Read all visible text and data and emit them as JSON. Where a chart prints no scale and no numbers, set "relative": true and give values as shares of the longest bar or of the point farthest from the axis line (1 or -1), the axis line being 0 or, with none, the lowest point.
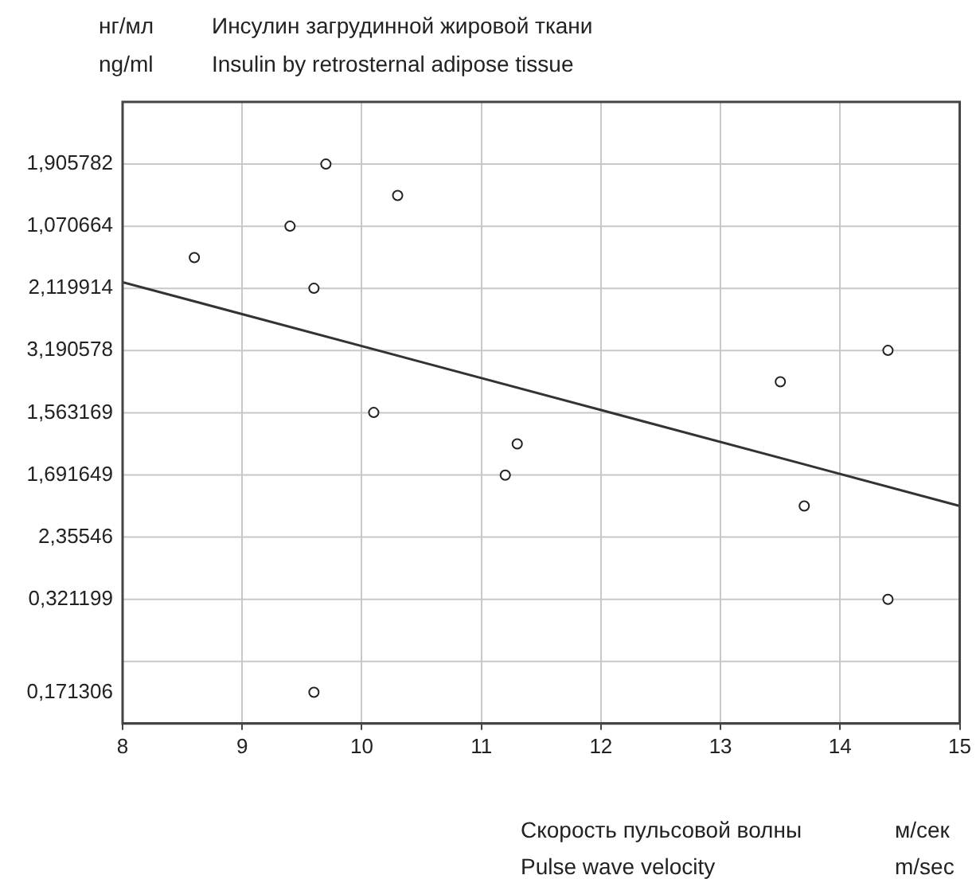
{
  "chart_data": {
    "type": "scatter",
    "title": "Инсулин загрудинной жировой ткани",
    "subtitle": "Insulin by retrosternal adipose tissue",
    "xlabel": "Скорость пульсовой волны",
    "annotations": [
      "нг/мл",
      "ng/ml",
      "Pulse wave velocity",
      "м/сек",
      "m/sec",
      "1,905782",
      "1,070664",
      "2,119914",
      "3,190578",
      "1,563169",
      "1,691649",
      "2,35546",
      "0,321199",
      "0,171306"
    ],
    "xlim": [
      8,
      15
    ],
    "xticks": [
      8,
      9,
      10,
      11,
      12,
      13,
      14,
      15
    ],
    "relative": true,
    "grid": true,
    "legend": false,
    "series": [
      {
        "color": "#222222",
        "marker": "circle",
        "x": [
          8.6,
          9.4,
          9.7,
          10.3,
          9.6,
          10.1,
          9.6,
          11.3,
          11.2,
          13.5,
          14.4,
          13.7,
          14.4
        ],
        "values": [
          0.833,
          0.889,
          1,
          0.944,
          0.778,
          0.556,
          0.056,
          0.5,
          0.444,
          0.611,
          0.667,
          0.389,
          0.222
        ]
      },
      {
        "type": "line",
        "color": "#333333",
        "marker": "none",
        "x": [
          8,
          15
        ],
        "values": [
          0.789,
          0.389
        ]
      }
    ]
  }
}
